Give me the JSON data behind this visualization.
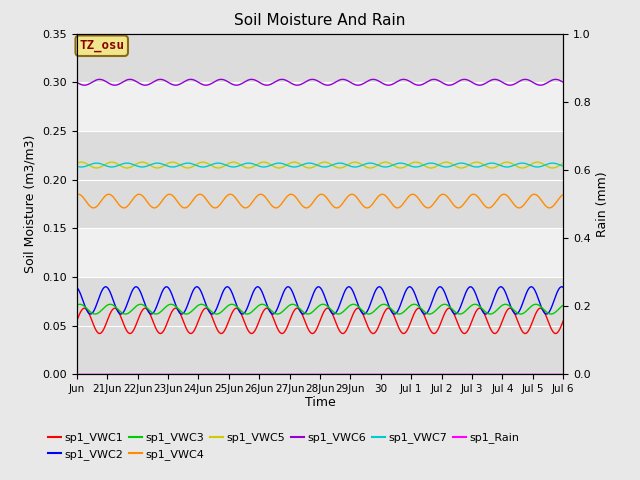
{
  "title": "Soil Moisture And Rain",
  "xlabel": "Time",
  "ylabel_left": "Soil Moisture (m3/m3)",
  "ylabel_right": "Rain (mm)",
  "annotation_text": "TZ_osu",
  "annotation_bg": "#f0e68c",
  "annotation_border": "#8B6914",
  "annotation_text_color": "#8B0000",
  "xlim_start": 0,
  "xlim_end": 16,
  "ylim_left": [
    0.0,
    0.35
  ],
  "ylim_right": [
    0.0,
    1.0
  ],
  "xtick_labels": [
    "Jun",
    "21Jun",
    "22Jun",
    "23Jun",
    "24Jun",
    "25Jun",
    "26Jun",
    "27Jun",
    "28Jun",
    "29Jun",
    "30",
    "Jul 1",
    "Jul 2",
    "Jul 3",
    "Jul 4",
    "Jul 5",
    "Jul 6"
  ],
  "bg_color": "#e8e8e8",
  "plot_bg": "#f0f0f0",
  "series": {
    "sp1_VWC1": {
      "color": "#ff0000",
      "mean": 0.055,
      "amp": 0.013,
      "period": 1.0,
      "phase": 0.0
    },
    "sp1_VWC2": {
      "color": "#0000ff",
      "mean": 0.076,
      "amp": 0.014,
      "period": 1.0,
      "phase": 0.3
    },
    "sp1_VWC3": {
      "color": "#00cc00",
      "mean": 0.067,
      "amp": 0.005,
      "period": 1.0,
      "phase": 0.15
    },
    "sp1_VWC4": {
      "color": "#ff8c00",
      "mean": 0.178,
      "amp": 0.007,
      "period": 1.0,
      "phase": 0.2
    },
    "sp1_VWC5": {
      "color": "#cccc00",
      "mean": 0.215,
      "amp": 0.003,
      "period": 1.0,
      "phase": 0.1
    },
    "sp1_VWC6": {
      "color": "#9400d3",
      "mean": 0.3,
      "amp": 0.003,
      "period": 1.0,
      "phase": 0.5
    },
    "sp1_VWC7": {
      "color": "#00cccc",
      "mean": 0.215,
      "amp": 0.002,
      "period": 1.0,
      "phase": 0.6
    },
    "sp1_Rain": {
      "color": "#ff00ff",
      "mean": 0.0,
      "amp": 0.0,
      "period": 1.0,
      "phase": 0.0
    }
  },
  "legend_order": [
    "sp1_VWC1",
    "sp1_VWC2",
    "sp1_VWC3",
    "sp1_VWC4",
    "sp1_VWC5",
    "sp1_VWC6",
    "sp1_VWC7",
    "sp1_Rain"
  ],
  "yticks_left": [
    0.0,
    0.05,
    0.1,
    0.15,
    0.2,
    0.25,
    0.3,
    0.35
  ],
  "yticks_right": [
    0.0,
    0.2,
    0.4,
    0.6,
    0.8,
    1.0
  ],
  "band_ranges": [
    [
      0.0,
      0.1
    ],
    [
      0.15,
      0.25
    ],
    [
      0.3,
      0.35
    ]
  ],
  "band_color": "#dcdcdc"
}
